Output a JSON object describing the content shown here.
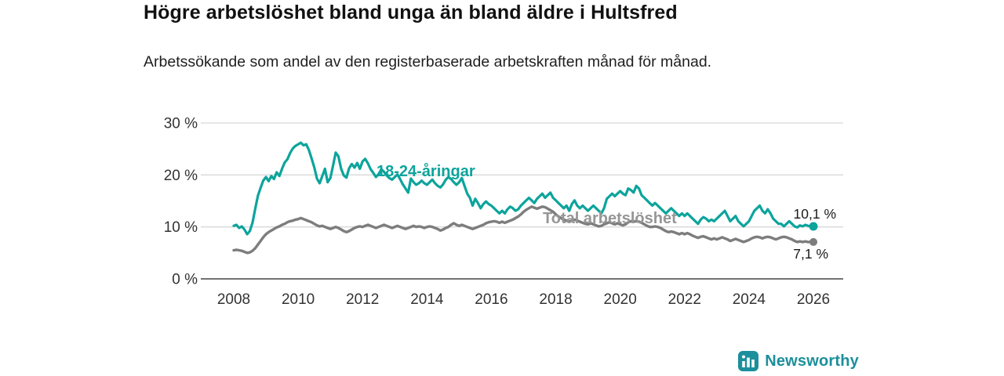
{
  "title": "Högre arbetslöshet bland unga än bland äldre i Hultsfred",
  "subtitle": "Arbetssökande som andel av den registerbaserade arbetskraften månad för månad.",
  "branding": {
    "logo_text": "Newsworthy",
    "logo_icon": "bar-chart-icon",
    "brand_color": "#1b8f9b"
  },
  "colors": {
    "youth_line": "#0ca49c",
    "total_line": "#7d7d7d",
    "grid": "#d8d8d8",
    "zero_axis": "#444444",
    "tick_text": "#333333",
    "end_label_text": "#1a1a1a"
  },
  "chart_data": {
    "type": "line",
    "title": "Högre arbetslöshet bland unga än bland äldre i Hultsfred",
    "subtitle": "Arbetssökande som andel av den registerbaserade arbetskraften månad för månad.",
    "xlabel": "",
    "ylabel": "",
    "unit": "%",
    "x_start_year": 2008,
    "x_end_year": 2026,
    "x_step_months": 1,
    "ylim": [
      0,
      30
    ],
    "grid": "horizontal",
    "legend_position": "inline-annotations",
    "yticks": [
      {
        "value": 0,
        "label": "0 %"
      },
      {
        "value": 10,
        "label": "10 %"
      },
      {
        "value": 20,
        "label": "20 %"
      },
      {
        "value": 30,
        "label": "30 %"
      }
    ],
    "xticks": [
      {
        "value": 2008,
        "label": "2008"
      },
      {
        "value": 2010,
        "label": "2010"
      },
      {
        "value": 2012,
        "label": "2012"
      },
      {
        "value": 2014,
        "label": "2014"
      },
      {
        "value": 2016,
        "label": "2016"
      },
      {
        "value": 2018,
        "label": "2018"
      },
      {
        "value": 2020,
        "label": "2020"
      },
      {
        "value": 2022,
        "label": "2022"
      },
      {
        "value": 2024,
        "label": "2024"
      },
      {
        "value": 2026,
        "label": "2026"
      }
    ],
    "series": [
      {
        "name": "18-24-åringar",
        "color": "#0ca49c",
        "label_color": "#0ca49c",
        "end_label": "10,1 %",
        "end_value": 10.1,
        "values": [
          10.2,
          10.4,
          9.8,
          10.1,
          9.5,
          8.6,
          9.2,
          10.8,
          13.5,
          16.0,
          17.5,
          18.9,
          19.6,
          18.8,
          19.8,
          19.2,
          20.5,
          19.8,
          21.2,
          22.4,
          23.0,
          24.2,
          25.1,
          25.6,
          25.9,
          26.2,
          25.7,
          25.9,
          24.8,
          23.2,
          21.5,
          19.3,
          18.4,
          19.8,
          21.2,
          18.6,
          19.4,
          21.8,
          24.3,
          23.6,
          21.2,
          19.9,
          19.5,
          21.3,
          22.1,
          21.4,
          22.3,
          21.2,
          22.6,
          23.1,
          22.2,
          21.1,
          20.4,
          19.6,
          20.2,
          21.1,
          20.6,
          19.9,
          19.4,
          19.1,
          19.6,
          20.1,
          19.2,
          18.2,
          17.4,
          16.6,
          19.3,
          18.6,
          18.1,
          18.4,
          18.9,
          18.4,
          18.1,
          18.6,
          19.1,
          18.4,
          17.9,
          17.6,
          18.2,
          19.1,
          19.6,
          19.2,
          18.6,
          18.1,
          18.6,
          19.4,
          17.9,
          16.4,
          15.6,
          14.1,
          15.4,
          14.6,
          13.6,
          14.4,
          14.9,
          14.4,
          14.1,
          13.6,
          13.1,
          12.6,
          13.1,
          12.6,
          13.4,
          13.9,
          13.6,
          13.1,
          13.4,
          14.1,
          14.6,
          15.1,
          15.6,
          15.1,
          14.6,
          15.4,
          15.9,
          16.4,
          15.6,
          16.1,
          16.6,
          15.6,
          15.1,
          14.6,
          14.1,
          13.6,
          14.1,
          13.1,
          14.4,
          15.1,
          14.1,
          13.6,
          14.1,
          13.6,
          13.1,
          13.6,
          14.1,
          13.6,
          13.1,
          12.6,
          13.6,
          15.4,
          15.9,
          16.4,
          15.9,
          16.4,
          16.9,
          16.4,
          16.1,
          17.4,
          17.1,
          16.6,
          17.9,
          17.4,
          16.1,
          15.6,
          15.1,
          14.6,
          14.1,
          14.6,
          14.1,
          13.6,
          13.1,
          12.6,
          13.1,
          13.6,
          13.1,
          12.6,
          12.1,
          12.6,
          12.1,
          12.6,
          12.1,
          11.6,
          11.1,
          10.6,
          11.4,
          11.9,
          11.6,
          11.1,
          11.4,
          11.1,
          11.6,
          12.1,
          12.6,
          13.1,
          12.1,
          11.1,
          11.6,
          12.1,
          11.1,
          10.6,
          10.1,
          10.6,
          11.1,
          12.1,
          13.1,
          13.6,
          14.1,
          13.1,
          12.6,
          13.4,
          12.6,
          11.6,
          11.1,
          10.6,
          10.6,
          10.1,
          10.6,
          11.1,
          10.6,
          10.1,
          9.9,
          10.3,
          10.1,
          10.4,
          10.2,
          10.1,
          10.1
        ]
      },
      {
        "name": "Total arbetslöshet",
        "color": "#7d7d7d",
        "label_color": "#969696",
        "end_label": "7,1 %",
        "end_value": 7.1,
        "values": [
          5.5,
          5.6,
          5.5,
          5.4,
          5.2,
          5.0,
          5.1,
          5.4,
          5.9,
          6.6,
          7.3,
          8.0,
          8.6,
          9.0,
          9.3,
          9.6,
          9.9,
          10.1,
          10.4,
          10.6,
          10.9,
          11.1,
          11.2,
          11.4,
          11.5,
          11.7,
          11.5,
          11.3,
          11.1,
          10.9,
          10.6,
          10.3,
          10.1,
          10.2,
          10.0,
          9.8,
          9.6,
          9.8,
          10.0,
          9.8,
          9.5,
          9.2,
          9.0,
          9.2,
          9.5,
          9.8,
          10.0,
          10.1,
          10.0,
          10.2,
          10.4,
          10.2,
          10.0,
          9.8,
          10.0,
          10.2,
          10.4,
          10.2,
          10.0,
          9.8,
          10.0,
          10.2,
          10.0,
          9.8,
          9.6,
          9.8,
          10.0,
          10.2,
          10.0,
          10.1,
          10.0,
          9.8,
          10.0,
          10.1,
          10.0,
          9.8,
          9.6,
          9.3,
          9.5,
          9.8,
          10.0,
          10.4,
          10.7,
          10.4,
          10.2,
          10.4,
          10.2,
          10.0,
          9.8,
          9.6,
          9.8,
          10.0,
          10.2,
          10.4,
          10.7,
          10.9,
          11.0,
          11.1,
          11.0,
          10.8,
          11.0,
          10.8,
          11.0,
          11.2,
          11.4,
          11.7,
          12.0,
          12.4,
          12.9,
          13.3,
          13.6,
          13.9,
          13.7,
          13.5,
          13.7,
          13.9,
          13.8,
          13.5,
          13.2,
          12.9,
          12.4,
          12.0,
          11.7,
          11.4,
          11.2,
          11.0,
          11.2,
          11.4,
          11.2,
          11.0,
          10.8,
          10.6,
          10.5,
          10.7,
          10.5,
          10.3,
          10.1,
          10.2,
          10.5,
          10.7,
          10.9,
          10.7,
          10.5,
          10.7,
          10.5,
          10.3,
          10.5,
          10.9,
          11.1,
          11.0,
          11.1,
          11.0,
          10.8,
          10.5,
          10.2,
          10.0,
          10.0,
          10.1,
          10.0,
          9.8,
          9.5,
          9.2,
          9.0,
          9.1,
          9.0,
          8.8,
          8.6,
          8.8,
          8.6,
          8.8,
          8.6,
          8.3,
          8.1,
          7.9,
          8.1,
          8.2,
          8.0,
          7.8,
          7.6,
          7.8,
          7.6,
          7.8,
          8.0,
          7.8,
          7.6,
          7.3,
          7.5,
          7.7,
          7.5,
          7.3,
          7.1,
          7.3,
          7.5,
          7.8,
          8.0,
          8.1,
          8.0,
          7.8,
          8.0,
          8.1,
          8.0,
          7.8,
          7.6,
          7.8,
          8.0,
          8.1,
          8.0,
          7.8,
          7.6,
          7.3,
          7.1,
          7.2,
          7.1,
          7.2,
          7.1,
          7.1,
          7.1
        ]
      }
    ]
  }
}
